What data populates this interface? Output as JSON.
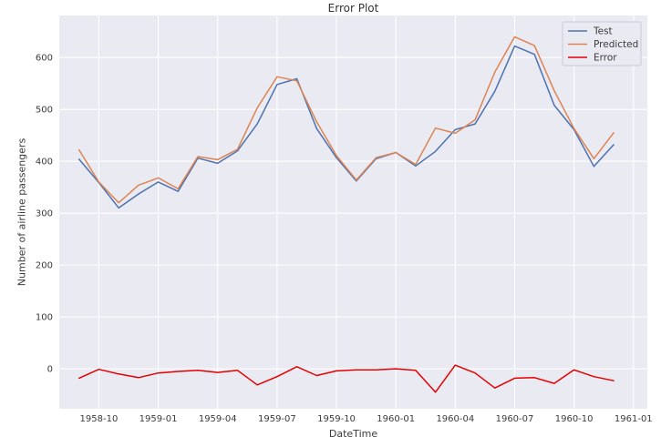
{
  "chart_data": {
    "type": "line",
    "title": "Error Plot",
    "xlabel": "DateTime",
    "ylabel": "Number of airline passengers",
    "x": [
      "1958-09",
      "1958-10",
      "1958-11",
      "1958-12",
      "1959-01",
      "1959-02",
      "1959-03",
      "1959-04",
      "1959-05",
      "1959-06",
      "1959-07",
      "1959-08",
      "1959-09",
      "1959-10",
      "1959-11",
      "1959-12",
      "1960-01",
      "1960-02",
      "1960-03",
      "1960-04",
      "1960-05",
      "1960-06",
      "1960-07",
      "1960-08",
      "1960-09",
      "1960-10",
      "1960-11",
      "1960-12"
    ],
    "series": [
      {
        "name": "Test",
        "color": "#4c72b0",
        "values": [
          404,
          359,
          310,
          337,
          360,
          342,
          406,
          396,
          420,
          472,
          548,
          559,
          463,
          407,
          362,
          405,
          417,
          391,
          419,
          461,
          472,
          535,
          622,
          606,
          508,
          461,
          390,
          432
        ]
      },
      {
        "name": "Predicted",
        "color": "#dd8452",
        "values": [
          422,
          360,
          320,
          354,
          368,
          347,
          409,
          403,
          423,
          503,
          563,
          555,
          476,
          411,
          364,
          407,
          417,
          394,
          464,
          454,
          480,
          572,
          640,
          623,
          536,
          463,
          405,
          455
        ]
      },
      {
        "name": "Error",
        "color": "#e50000",
        "values": [
          -18,
          -1,
          -10,
          -17,
          -8,
          -5,
          -3,
          -7,
          -3,
          -31,
          -15,
          4,
          -13,
          -4,
          -2,
          -2,
          0,
          -3,
          -45,
          7,
          -8,
          -37,
          -18,
          -17,
          -28,
          -2,
          -15,
          -23
        ]
      }
    ],
    "x_tick_labels": [
      "1958-10",
      "1959-01",
      "1959-04",
      "1959-07",
      "1959-10",
      "1960-01",
      "1960-04",
      "1960-07",
      "1960-10",
      "1961-01"
    ],
    "x_tick_indices": [
      1,
      4,
      7,
      10,
      13,
      16,
      19,
      22,
      25,
      28
    ],
    "y_ticks": [
      0,
      100,
      200,
      300,
      400,
      500,
      600
    ],
    "ylim": [
      -77,
      681
    ],
    "xlim_index": [
      -1.0,
      28.7
    ],
    "grid": true,
    "legend_position": "upper right",
    "colors": {
      "figure_bg": "#ffffff",
      "axes_bg": "#eaeaf2",
      "grid": "#ffffff",
      "tick_text": "#3b3b3b",
      "legend_bg": "#eaeaf2",
      "legend_border": "#cbcbd6"
    }
  }
}
